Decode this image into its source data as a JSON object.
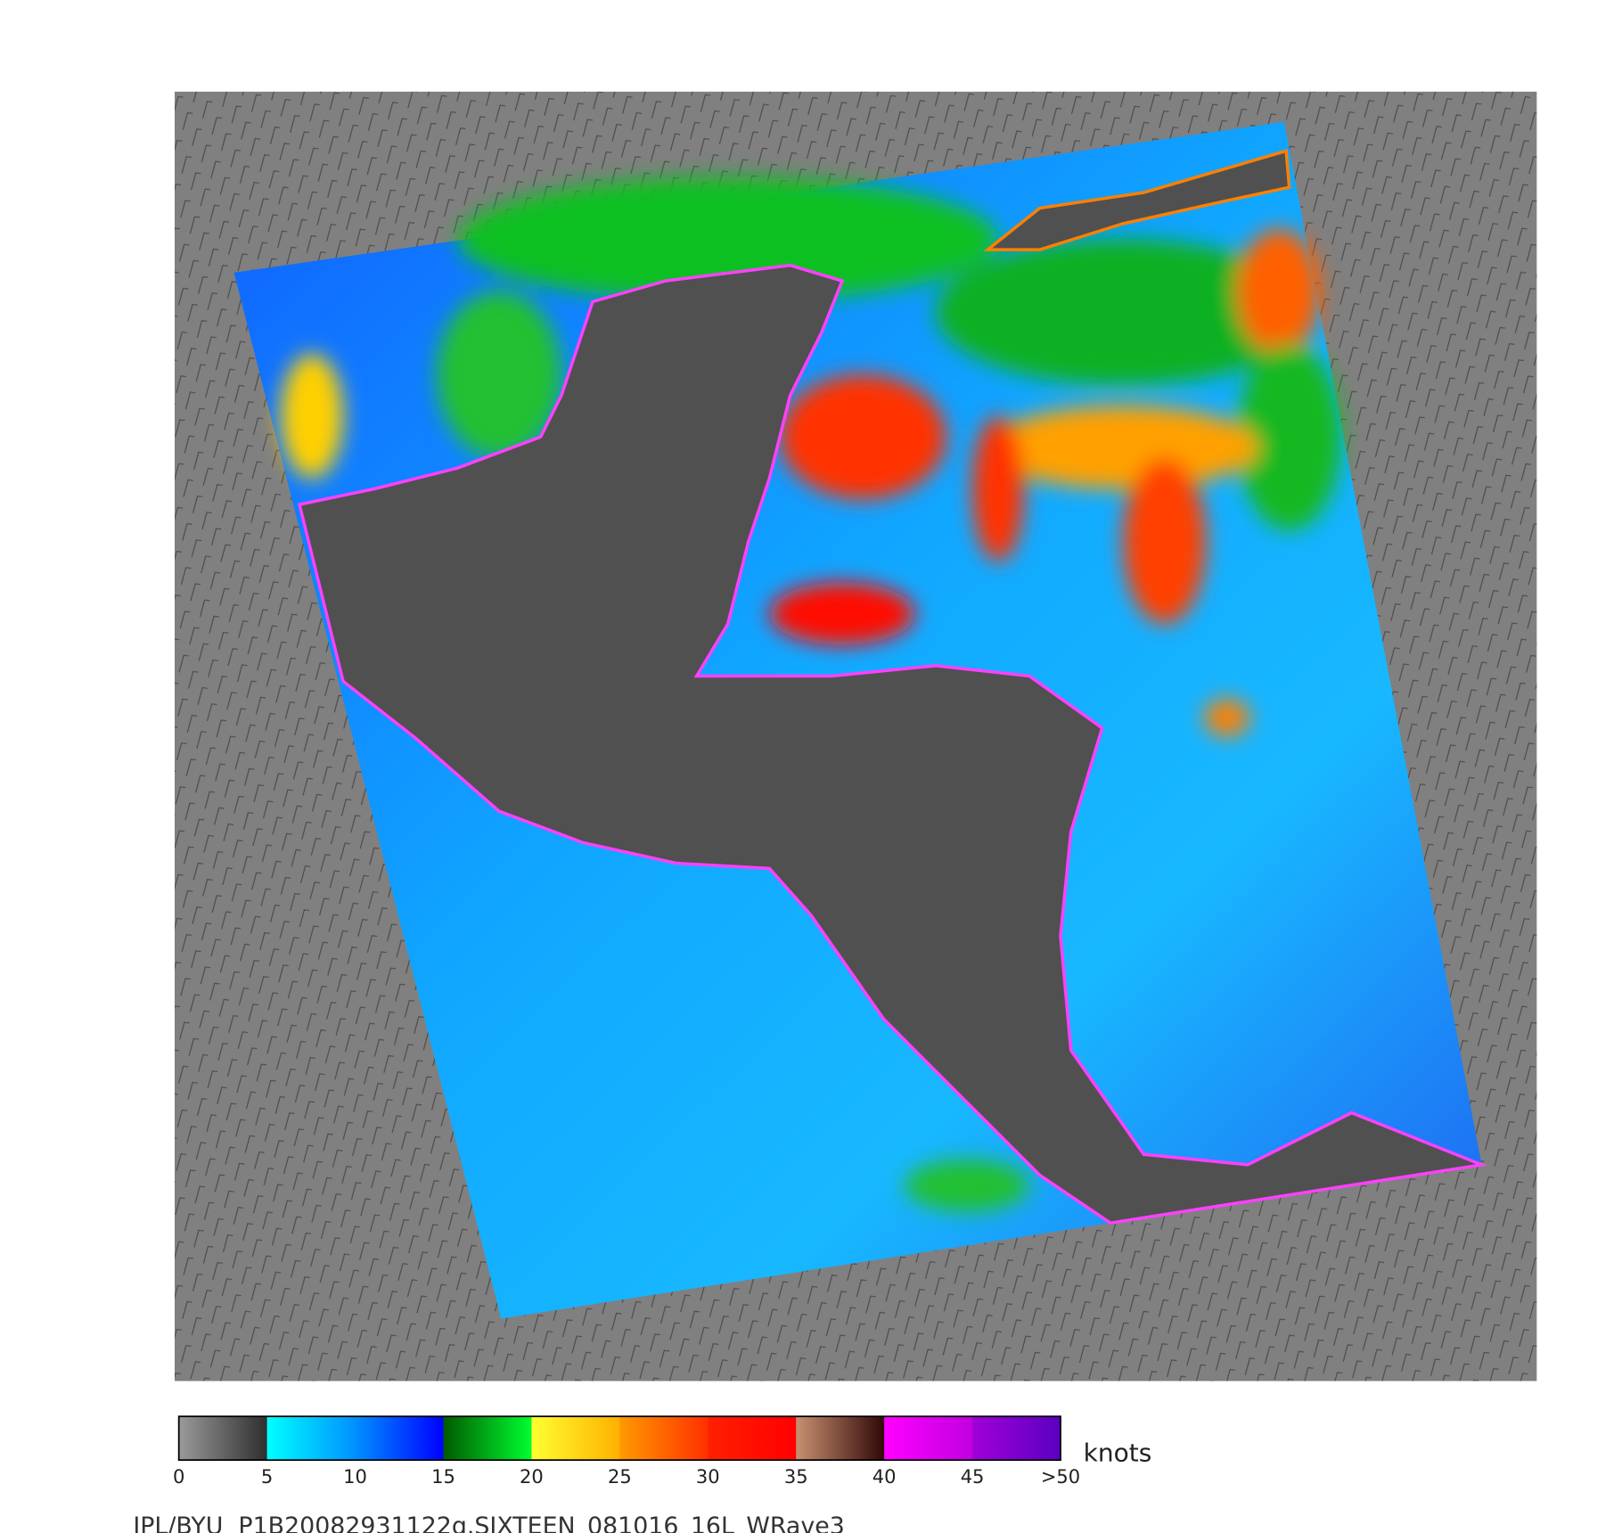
{
  "colorbar": {
    "range": [
      0,
      50
    ],
    "ticks": [
      0,
      5,
      10,
      15,
      20,
      25,
      30,
      35,
      40,
      45,
      {
        "value": 50,
        "label": ">50"
      }
    ],
    "unit": "knots",
    "segments": [
      [
        "#9a9a9a",
        "#2e2e2e"
      ],
      [
        "#00ffff",
        "#0090ff"
      ],
      [
        "#0090ff",
        "#0000ff"
      ],
      [
        "#005a00",
        "#00ff30"
      ],
      [
        "#ffff30",
        "#ffb000"
      ],
      [
        "#ff9a00",
        "#ff3000"
      ],
      [
        "#ff2000",
        "#ff0000"
      ],
      [
        "#c89070",
        "#300808"
      ],
      [
        "#ff00ff",
        "#c000e0"
      ],
      [
        "#a000d8",
        "#5a00c0"
      ]
    ]
  },
  "footer": "JPL/BYU  P1B20082931122q.SIXTEEN_081016_16L_WRave3"
}
